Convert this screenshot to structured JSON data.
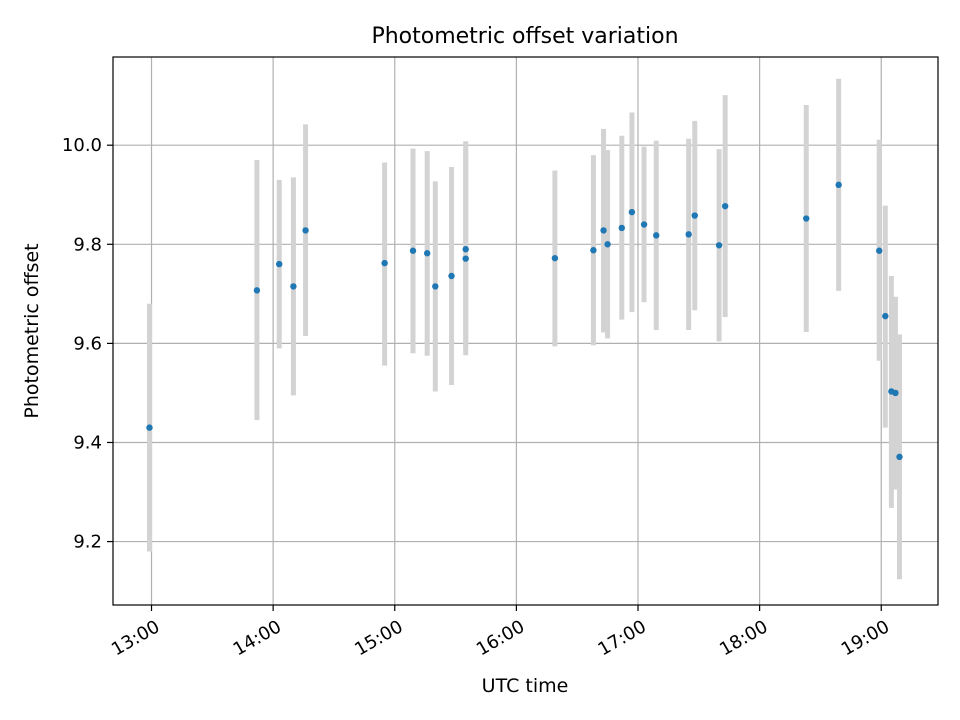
{
  "chart_data": {
    "type": "scatter",
    "title": "Photometric offset variation",
    "xlabel": "UTC time",
    "ylabel": "Photometric offset",
    "xlim": [
      "12:41",
      "19:28"
    ],
    "ylim": [
      9.072,
      10.178
    ],
    "x_ticks": [
      "13:00",
      "14:00",
      "15:00",
      "16:00",
      "17:00",
      "18:00",
      "19:00"
    ],
    "y_ticks": [
      "9.2",
      "9.4",
      "9.6",
      "9.8",
      "10.0"
    ],
    "grid": true,
    "colors": {
      "point": "#1f77b4",
      "errorbar": "#d3d3d3",
      "grid": "#b0b0b0"
    },
    "series": [
      {
        "points": [
          {
            "x": "12:59",
            "y": 9.43,
            "ylow": 9.18,
            "yhigh": 9.68
          },
          {
            "x": "13:52",
            "y": 9.707,
            "ylow": 9.445,
            "yhigh": 9.97
          },
          {
            "x": "14:03",
            "y": 9.76,
            "ylow": 9.59,
            "yhigh": 9.93
          },
          {
            "x": "14:10",
            "y": 9.715,
            "ylow": 9.495,
            "yhigh": 9.935
          },
          {
            "x": "14:16",
            "y": 9.828,
            "ylow": 9.615,
            "yhigh": 10.042
          },
          {
            "x": "14:55",
            "y": 9.762,
            "ylow": 9.555,
            "yhigh": 9.965
          },
          {
            "x": "15:09",
            "y": 9.787,
            "ylow": 9.58,
            "yhigh": 9.993
          },
          {
            "x": "15:16",
            "y": 9.782,
            "ylow": 9.575,
            "yhigh": 9.988
          },
          {
            "x": "15:20",
            "y": 9.715,
            "ylow": 9.503,
            "yhigh": 9.927
          },
          {
            "x": "15:28",
            "y": 9.736,
            "ylow": 9.516,
            "yhigh": 9.956
          },
          {
            "x": "15:35",
            "y": 9.771,
            "ylow": 9.576,
            "yhigh": 10.008
          },
          {
            "x": "15:35",
            "y": 9.79,
            "ylow": 9.588,
            "yhigh": 9.99
          },
          {
            "x": "16:19",
            "y": 9.772,
            "ylow": 9.594,
            "yhigh": 9.949
          },
          {
            "x": "16:38",
            "y": 9.788,
            "ylow": 9.596,
            "yhigh": 9.98
          },
          {
            "x": "16:43",
            "y": 9.828,
            "ylow": 9.622,
            "yhigh": 10.033
          },
          {
            "x": "16:45",
            "y": 9.8,
            "ylow": 9.61,
            "yhigh": 9.99
          },
          {
            "x": "16:52",
            "y": 9.833,
            "ylow": 9.648,
            "yhigh": 10.019
          },
          {
            "x": "16:57",
            "y": 9.865,
            "ylow": 9.663,
            "yhigh": 10.066
          },
          {
            "x": "17:03",
            "y": 9.84,
            "ylow": 9.683,
            "yhigh": 9.997
          },
          {
            "x": "17:09",
            "y": 9.818,
            "ylow": 9.627,
            "yhigh": 10.009
          },
          {
            "x": "17:25",
            "y": 9.82,
            "ylow": 9.627,
            "yhigh": 10.013
          },
          {
            "x": "17:28",
            "y": 9.858,
            "ylow": 9.667,
            "yhigh": 10.049
          },
          {
            "x": "17:40",
            "y": 9.798,
            "ylow": 9.604,
            "yhigh": 9.992
          },
          {
            "x": "17:43",
            "y": 9.877,
            "ylow": 9.653,
            "yhigh": 10.101
          },
          {
            "x": "18:23",
            "y": 9.852,
            "ylow": 9.623,
            "yhigh": 10.081
          },
          {
            "x": "18:39",
            "y": 9.92,
            "ylow": 9.706,
            "yhigh": 10.134
          },
          {
            "x": "18:59",
            "y": 9.787,
            "ylow": 9.565,
            "yhigh": 10.011
          },
          {
            "x": "19:02",
            "y": 9.655,
            "ylow": 9.43,
            "yhigh": 9.878
          },
          {
            "x": "19:05",
            "y": 9.503,
            "ylow": 9.268,
            "yhigh": 9.736
          },
          {
            "x": "19:07",
            "y": 9.5,
            "ylow": 9.305,
            "yhigh": 9.694
          },
          {
            "x": "19:09",
            "y": 9.371,
            "ylow": 9.124,
            "yhigh": 9.618
          }
        ]
      }
    ]
  }
}
